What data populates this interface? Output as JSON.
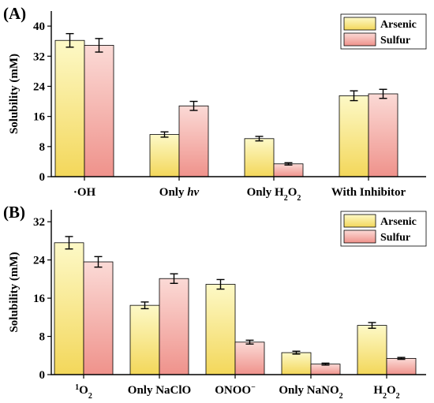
{
  "chart_data": [
    {
      "panel_label": "(A)",
      "type": "bar",
      "categories": [
        "·OH",
        "Only hv",
        "Only H2O2",
        "With Inhibitor"
      ],
      "category_markup": [
        "·OH",
        "Only <tspan font-style=\"italic\">hv</tspan>",
        "Only H<tspan baseline-shift=\"sub\" font-size=\"10\">2</tspan>O<tspan baseline-shift=\"sub\" font-size=\"10\">2</tspan>",
        "With Inhibitor"
      ],
      "series": [
        {
          "name": "Arsenic",
          "values": [
            36.2,
            11.2,
            10.1,
            21.5
          ],
          "errors": [
            1.8,
            0.7,
            0.6,
            1.3
          ]
        },
        {
          "name": "Sulfur",
          "values": [
            34.9,
            18.8,
            3.4,
            22.0
          ],
          "errors": [
            1.8,
            1.2,
            0.3,
            1.2
          ]
        }
      ],
      "ylabel": "Solubility (mM)",
      "ylim": [
        0,
        44
      ],
      "yticks": [
        0,
        8,
        16,
        24,
        32,
        40
      ],
      "legend_position": "top-right",
      "grid": false
    },
    {
      "panel_label": "(B)",
      "type": "bar",
      "categories": [
        "1O2",
        "Only NaClO",
        "ONOO−",
        "Only NaNO2",
        "H2O2"
      ],
      "category_markup": [
        "<tspan baseline-shift=\"super\" font-size=\"10\">1</tspan>O<tspan baseline-shift=\"sub\" font-size=\"10\">2</tspan>",
        "Only NaClO",
        "ONOO<tspan baseline-shift=\"super\" font-size=\"10\">−</tspan>",
        "Only NaNO<tspan baseline-shift=\"sub\" font-size=\"10\">2</tspan>",
        "H<tspan baseline-shift=\"sub\" font-size=\"10\">2</tspan>O<tspan baseline-shift=\"sub\" font-size=\"10\">2</tspan>"
      ],
      "series": [
        {
          "name": "Arsenic",
          "values": [
            27.6,
            14.5,
            18.9,
            4.6,
            10.3
          ],
          "errors": [
            1.3,
            0.7,
            1.0,
            0.3,
            0.6
          ]
        },
        {
          "name": "Sulfur",
          "values": [
            23.6,
            20.1,
            6.8,
            2.2,
            3.4
          ],
          "errors": [
            1.1,
            1.0,
            0.4,
            0.2,
            0.2
          ]
        }
      ],
      "ylabel": "Solubility (mM)",
      "ylim": [
        0,
        34.5
      ],
      "yticks": [
        0,
        8,
        16,
        24,
        32
      ],
      "legend_position": "top-right",
      "grid": false
    }
  ]
}
